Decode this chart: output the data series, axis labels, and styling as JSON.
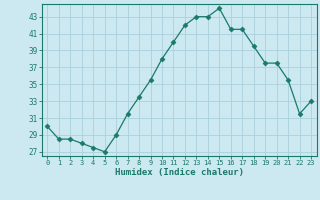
{
  "x": [
    0,
    1,
    2,
    3,
    4,
    5,
    6,
    7,
    8,
    9,
    10,
    11,
    12,
    13,
    14,
    15,
    16,
    17,
    18,
    19,
    20,
    21,
    22,
    23
  ],
  "y": [
    30,
    28.5,
    28.5,
    28,
    27.5,
    27,
    29,
    31.5,
    33.5,
    35.5,
    38,
    40,
    42,
    43,
    43,
    44,
    41.5,
    41.5,
    39.5,
    37.5,
    37.5,
    35.5,
    31.5,
    33
  ],
  "xlabel": "Humidex (Indice chaleur)",
  "line_color": "#1a7a6a",
  "marker": "D",
  "marker_size": 2.5,
  "bg_color": "#cce8f0",
  "grid_color": "#aad0dc",
  "ylim": [
    26.5,
    44.5
  ],
  "yticks": [
    27,
    29,
    31,
    33,
    35,
    37,
    39,
    41,
    43
  ],
  "xlim": [
    -0.5,
    23.5
  ],
  "xticks": [
    0,
    1,
    2,
    3,
    4,
    5,
    6,
    7,
    8,
    9,
    10,
    11,
    12,
    13,
    14,
    15,
    16,
    17,
    18,
    19,
    20,
    21,
    22,
    23
  ]
}
